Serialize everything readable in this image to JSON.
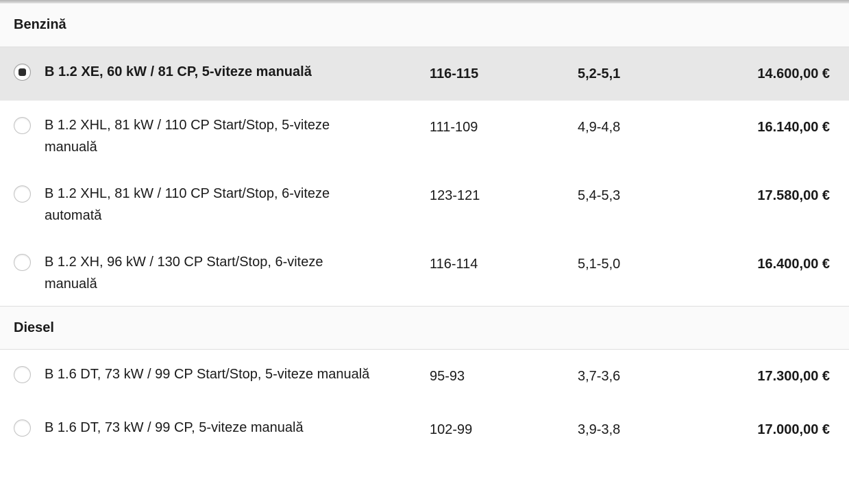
{
  "colors": {
    "selected_row_bg": "#e7e7e7",
    "section_header_bg": "#fafafa",
    "radio_dot": "#2e2e2e",
    "text": "#1a1a1a"
  },
  "sections": [
    {
      "label": "Benzină",
      "engines": [
        {
          "name": "B 1.2 XE, 60 kW / 81 CP, 5-viteze manuală",
          "co2": "116-115",
          "consumption": "5,2-5,1",
          "price": "14.600,00 €",
          "selected": true
        },
        {
          "name": "B 1.2 XHL, 81 kW / 110 CP Start/Stop, 5-viteze manuală",
          "co2": "111-109",
          "consumption": "4,9-4,8",
          "price": "16.140,00 €",
          "selected": false
        },
        {
          "name": "B 1.2 XHL, 81 kW / 110 CP Start/Stop, 6-viteze automată",
          "co2": "123-121",
          "consumption": "5,4-5,3",
          "price": "17.580,00 €",
          "selected": false
        },
        {
          "name": "B 1.2 XH, 96 kW / 130 CP Start/Stop, 6-viteze manuală",
          "co2": "116-114",
          "consumption": "5,1-5,0",
          "price": "16.400,00 €",
          "selected": false
        }
      ]
    },
    {
      "label": "Diesel",
      "engines": [
        {
          "name": "B 1.6 DT, 73 kW / 99 CP Start/Stop, 5-viteze manuală",
          "co2": "95-93",
          "consumption": "3,7-3,6",
          "price": "17.300,00 €",
          "selected": false
        },
        {
          "name": "B 1.6 DT, 73 kW / 99 CP, 5-viteze manuală",
          "co2": "102-99",
          "consumption": "3,9-3,8",
          "price": "17.000,00 €",
          "selected": false
        }
      ]
    }
  ]
}
